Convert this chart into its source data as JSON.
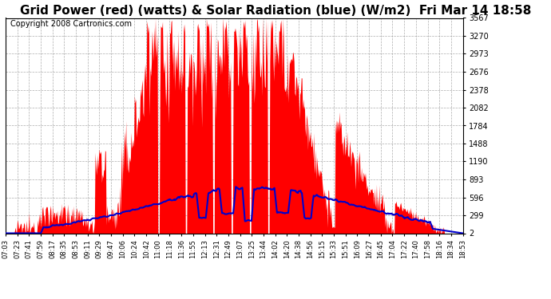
{
  "title": "Grid Power (red) (watts) & Solar Radiation (blue) (W/m2)  Fri Mar 14 18:58",
  "copyright": "Copyright 2008 Cartronics.com",
  "yticks": [
    2.4,
    299.4,
    596.4,
    893.4,
    1190.5,
    1487.5,
    1784.5,
    2081.5,
    2378.5,
    2675.5,
    2972.6,
    3269.6,
    3566.6
  ],
  "ymin": 2.4,
  "ymax": 3566.6,
  "bg_color": "#ffffff",
  "grid_color": "#999999",
  "red_color": "#ff0000",
  "blue_color": "#0000cc",
  "title_fontsize": 11,
  "copyright_fontsize": 7,
  "xtick_labels": [
    "07:03",
    "07:23",
    "07:41",
    "07:59",
    "08:17",
    "08:35",
    "08:53",
    "09:11",
    "09:29",
    "09:47",
    "10:06",
    "10:24",
    "10:42",
    "11:00",
    "11:18",
    "11:36",
    "11:55",
    "12:13",
    "12:31",
    "12:49",
    "13:07",
    "13:25",
    "13:44",
    "14:02",
    "14:20",
    "14:38",
    "14:56",
    "15:15",
    "15:33",
    "15:51",
    "16:09",
    "16:27",
    "16:45",
    "17:04",
    "17:22",
    "17:40",
    "17:58",
    "18:16",
    "18:34",
    "18:53"
  ]
}
